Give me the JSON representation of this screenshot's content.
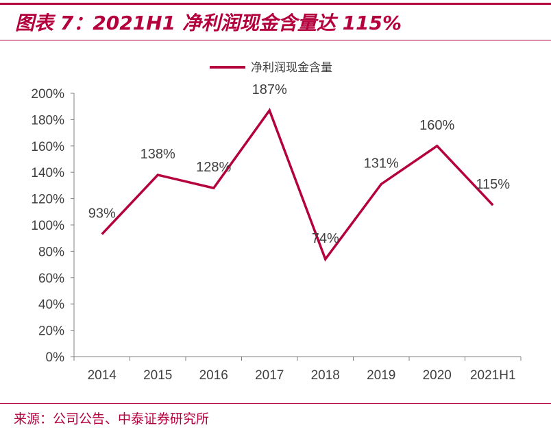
{
  "title": "图表 7：2021H1 净利润现金含量达 115%",
  "source": "来源：公司公告、中泰证券研究所",
  "colors": {
    "accent": "#b4003c",
    "series": "#b4003c",
    "axis": "#808080",
    "text": "#404040"
  },
  "chart_data": {
    "type": "line",
    "categories": [
      "2014",
      "2015",
      "2016",
      "2017",
      "2018",
      "2019",
      "2020",
      "2021H1"
    ],
    "series": [
      {
        "name": "净利润现金含量",
        "values": [
          93,
          138,
          128,
          187,
          74,
          131,
          160,
          115
        ]
      }
    ],
    "data_labels": [
      "93%",
      "138%",
      "128%",
      "187%",
      "74%",
      "131%",
      "160%",
      "115%"
    ],
    "yticks": [
      0,
      20,
      40,
      60,
      80,
      100,
      120,
      140,
      160,
      180,
      200
    ],
    "ytick_labels": [
      "0%",
      "20%",
      "40%",
      "60%",
      "80%",
      "100%",
      "120%",
      "140%",
      "160%",
      "180%",
      "200%"
    ],
    "ylim": [
      0,
      200
    ],
    "grid": false,
    "legend_position": "top-center"
  }
}
